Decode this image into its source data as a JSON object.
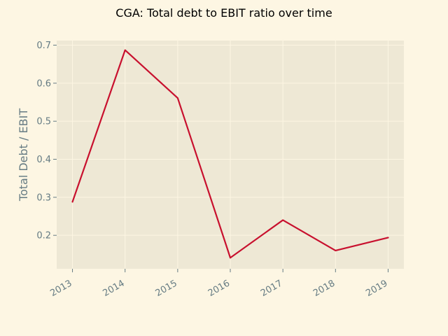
{
  "chart_data": {
    "type": "line",
    "title": "CGA: Total debt to EBIT ratio over time",
    "xlabel": "",
    "ylabel": "Total Debt / EBIT",
    "x": [
      "2013",
      "2014",
      "2015",
      "2016",
      "2017",
      "2018",
      "2019"
    ],
    "series": [
      {
        "values": [
          0.288,
          0.687,
          0.561,
          0.141,
          0.24,
          0.16,
          0.194
        ]
      }
    ],
    "xlim": [
      2012.7,
      2019.3
    ],
    "ylim": [
      0.112,
      0.712
    ],
    "yticks": [
      "0.2",
      "0.3",
      "0.4",
      "0.5",
      "0.6",
      "0.7"
    ],
    "grid": true,
    "colors": {
      "figure_bg": "#fdf6e3",
      "plot_bg": "#eee8d5",
      "grid": "#fdf6e3",
      "line": "#c8102e",
      "tick_text": "#657b83",
      "title_text": "#000000"
    }
  }
}
